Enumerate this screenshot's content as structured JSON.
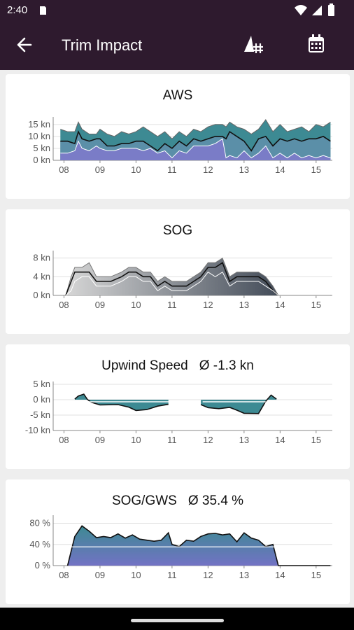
{
  "status": {
    "time": "2:40"
  },
  "appbar": {
    "title": "Trim Impact"
  },
  "hours": [
    "08",
    "09",
    "10",
    "11",
    "12",
    "13",
    "14",
    "15"
  ],
  "charts": [
    {
      "id": "aws",
      "title": "AWS",
      "average": "",
      "ylabels": [
        "15 kn",
        "10 kn",
        "5 kn",
        "0 kn"
      ]
    },
    {
      "id": "sog",
      "title": "SOG",
      "average": "",
      "ylabels": [
        "8 kn",
        "4 kn",
        "0 kn"
      ]
    },
    {
      "id": "upwind",
      "title": "Upwind Speed",
      "average": "Ø -1.3 kn",
      "ylabels": [
        "5 kn",
        "0 kn",
        "-5 kn",
        "-10 kn"
      ]
    },
    {
      "id": "soggws",
      "title": "SOG/GWS",
      "average": "Ø 35.4 %",
      "ylabels": [
        "80 %",
        "40 %",
        "0 %"
      ]
    }
  ],
  "chart_data": [
    {
      "type": "area",
      "title": "AWS",
      "ylabel": "kn",
      "ylim": [
        0,
        17
      ],
      "x": [
        7.9,
        8.1,
        8.3,
        8.4,
        8.5,
        8.7,
        8.9,
        9.0,
        9.2,
        9.4,
        9.6,
        9.8,
        10.0,
        10.2,
        10.4,
        10.6,
        10.8,
        11.0,
        11.2,
        11.4,
        11.6,
        11.8,
        12.0,
        12.2,
        12.4,
        12.5,
        12.6,
        12.8,
        13.0,
        13.2,
        13.4,
        13.6,
        13.8,
        14.0,
        14.2,
        14.4,
        14.6,
        14.8,
        15.0,
        15.2,
        15.4
      ],
      "series": [
        {
          "values": [
            13,
            12,
            12,
            16,
            13,
            11,
            11,
            13,
            11,
            10,
            12,
            11,
            12,
            14,
            12,
            10,
            12,
            9,
            12,
            10,
            13,
            12,
            14,
            15,
            15,
            14,
            16,
            14,
            13,
            11,
            13,
            17,
            12,
            15,
            12,
            13,
            14,
            12,
            15,
            14,
            16
          ]
        },
        {
          "values": [
            8,
            8,
            7,
            12,
            9,
            8,
            9,
            9,
            6,
            6,
            7,
            7,
            8,
            8,
            6,
            4,
            7,
            5,
            8,
            6,
            9,
            8,
            9,
            10,
            10,
            9,
            12,
            10,
            8,
            4,
            9,
            10,
            6,
            9,
            8,
            9,
            8,
            9,
            9,
            10,
            8
          ]
        },
        {
          "values": [
            3,
            3,
            4,
            8,
            5,
            4,
            6,
            5,
            4,
            4,
            5,
            5,
            5,
            4,
            5,
            3,
            4,
            1,
            4,
            3,
            6,
            6,
            6,
            7,
            9,
            1,
            2,
            1,
            4,
            1,
            3,
            6,
            1,
            3,
            1,
            3,
            1,
            2,
            1,
            2,
            1
          ]
        }
      ]
    },
    {
      "type": "area",
      "title": "SOG",
      "ylabel": "kn",
      "ylim": [
        0,
        9
      ],
      "x": [
        8.05,
        8.2,
        8.3,
        8.5,
        8.7,
        8.9,
        9.1,
        9.3,
        9.6,
        9.8,
        10.0,
        10.2,
        10.4,
        10.6,
        10.8,
        11.0,
        11.2,
        11.4,
        11.6,
        11.8,
        12.0,
        12.2,
        12.4,
        12.6,
        12.8,
        13.0,
        13.2,
        13.4,
        13.6,
        13.8,
        13.95,
        14.5,
        15.4
      ],
      "series": [
        {
          "values": [
            0,
            4,
            6,
            6,
            7,
            4,
            4,
            4,
            5,
            6,
            6,
            5,
            5,
            3,
            4,
            3,
            3,
            3,
            4,
            5,
            7,
            7,
            8,
            4,
            5,
            5,
            5,
            5,
            4,
            2,
            0,
            0,
            0
          ]
        },
        {
          "values": [
            0,
            3,
            5,
            5,
            5,
            3,
            3,
            3,
            4,
            5,
            5,
            4,
            4,
            2,
            3,
            2,
            2,
            2,
            3,
            4,
            6,
            6,
            7,
            3,
            4,
            4,
            4,
            4,
            3,
            1,
            0,
            0,
            0
          ]
        },
        {
          "values": [
            0,
            1,
            3,
            4,
            4,
            2,
            2,
            2,
            3,
            4,
            4,
            3,
            3,
            1,
            2,
            1,
            1,
            1,
            2,
            3,
            5,
            4,
            5,
            2,
            3,
            3,
            3,
            3,
            2,
            1,
            0,
            0,
            0
          ]
        }
      ]
    },
    {
      "type": "area",
      "title": "Upwind Speed",
      "average": "Ø -1.3 kn",
      "ylabel": "kn",
      "ylim": [
        -10,
        5
      ],
      "x": [
        8.3,
        8.4,
        8.55,
        8.65,
        8.75,
        9.0,
        9.5,
        9.8,
        10.0,
        10.3,
        10.6,
        10.9,
        11.0,
        11.8,
        12.0,
        12.3,
        12.6,
        12.8,
        13.0,
        13.4,
        13.6,
        13.75,
        13.9
      ],
      "series": [
        {
          "values": [
            0.2,
            1.2,
            1.8,
            0.1,
            -0.8,
            -1.7,
            -1.6,
            -2.4,
            -3.5,
            -3.2,
            -2.1,
            -1.5,
            null,
            -1.6,
            -2.6,
            -2.9,
            -2.5,
            -3.4,
            -4.4,
            -4.5,
            -0.5,
            1.5,
            0.2
          ]
        }
      ]
    },
    {
      "type": "area",
      "title": "SOG/GWS",
      "average": "Ø 35.4 %",
      "ylabel": "%",
      "ylim": [
        0,
        90
      ],
      "x": [
        8.1,
        8.3,
        8.5,
        8.7,
        8.9,
        9.1,
        9.3,
        9.5,
        9.7,
        9.9,
        10.1,
        10.3,
        10.5,
        10.7,
        10.9,
        11.0,
        11.2,
        11.4,
        11.6,
        11.8,
        12.0,
        12.2,
        12.4,
        12.6,
        12.8,
        13.0,
        13.2,
        13.4,
        13.6,
        13.8,
        13.95,
        14.5,
        15.4
      ],
      "series": [
        {
          "values": [
            0,
            55,
            75,
            65,
            53,
            55,
            53,
            60,
            52,
            58,
            50,
            48,
            46,
            48,
            62,
            40,
            36,
            48,
            46,
            55,
            60,
            61,
            58,
            60,
            45,
            62,
            52,
            48,
            36,
            40,
            0,
            0,
            0
          ]
        }
      ]
    }
  ]
}
